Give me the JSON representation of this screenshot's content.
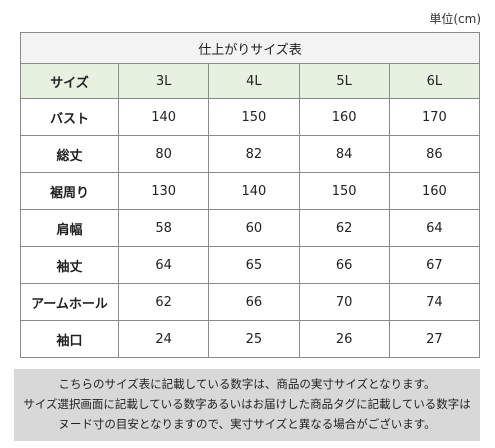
{
  "unit_label": "単位(cm)",
  "table": {
    "caption": "仕上がりサイズ表",
    "corner_label": "サイズ",
    "sizes": [
      "3L",
      "4L",
      "5L",
      "6L"
    ],
    "rows": [
      {
        "label": "バスト",
        "values": [
          "140",
          "150",
          "160",
          "170"
        ]
      },
      {
        "label": "総丈",
        "values": [
          "80",
          "82",
          "84",
          "86"
        ]
      },
      {
        "label": "裾周り",
        "values": [
          "130",
          "140",
          "150",
          "160"
        ]
      },
      {
        "label": "肩幅",
        "values": [
          "58",
          "60",
          "62",
          "64"
        ]
      },
      {
        "label": "袖丈",
        "values": [
          "64",
          "65",
          "66",
          "67"
        ]
      },
      {
        "label": "アームホール",
        "values": [
          "62",
          "66",
          "70",
          "74"
        ]
      },
      {
        "label": "袖口",
        "values": [
          "24",
          "25",
          "26",
          "27"
        ]
      }
    ]
  },
  "note": {
    "lines": [
      "こちらのサイズ表に記載している数字は、商品の実寸サイズとなります。",
      "サイズ選択画面に記載している数字あるいはお届けした商品タグに記載している数字は",
      "ヌード寸の目安となりますので、実寸サイズと異なる場合がございます。"
    ]
  }
}
